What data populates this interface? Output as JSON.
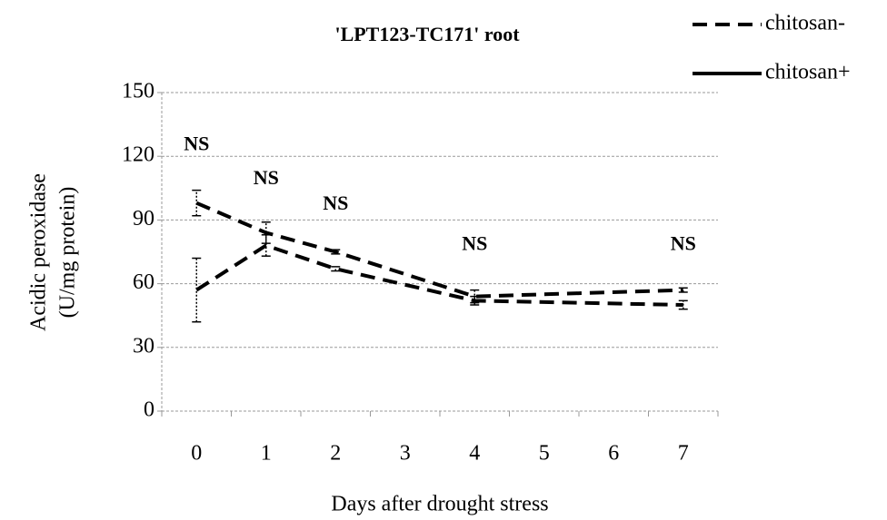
{
  "chart_data": {
    "type": "line",
    "title": "'LPT123-TC171' root",
    "ylabel": [
      "Acidic peroxidase",
      "(U/mg protein)"
    ],
    "xlabel": "Days after drought stress",
    "x": [
      0,
      1,
      2,
      4,
      7
    ],
    "xlim": [
      -0.5,
      7.5
    ],
    "xticks": [
      0,
      1,
      2,
      3,
      4,
      5,
      6,
      7
    ],
    "ylim": [
      0,
      150
    ],
    "yticks": [
      0,
      30,
      60,
      90,
      120,
      150
    ],
    "grid": true,
    "lines_dashed": true,
    "series": [
      {
        "name": "chitosan-",
        "color": "#000000",
        "dashed": true,
        "values": [
          57,
          78,
          67,
          52,
          50
        ],
        "errors": [
          15,
          5,
          1,
          2,
          2
        ]
      },
      {
        "name": "chitosan+",
        "color": "#000000",
        "dashed": false,
        "values": [
          98,
          84,
          75,
          54,
          57
        ],
        "errors": [
          6,
          5,
          1,
          3,
          1
        ]
      }
    ],
    "annotations": [
      {
        "text": "NS",
        "x": 0,
        "y": 125
      },
      {
        "text": "NS",
        "x": 1,
        "y": 109
      },
      {
        "text": "NS",
        "x": 2,
        "y": 97
      },
      {
        "text": "NS",
        "x": 4,
        "y": 78
      },
      {
        "text": "NS",
        "x": 7,
        "y": 78
      }
    ]
  }
}
